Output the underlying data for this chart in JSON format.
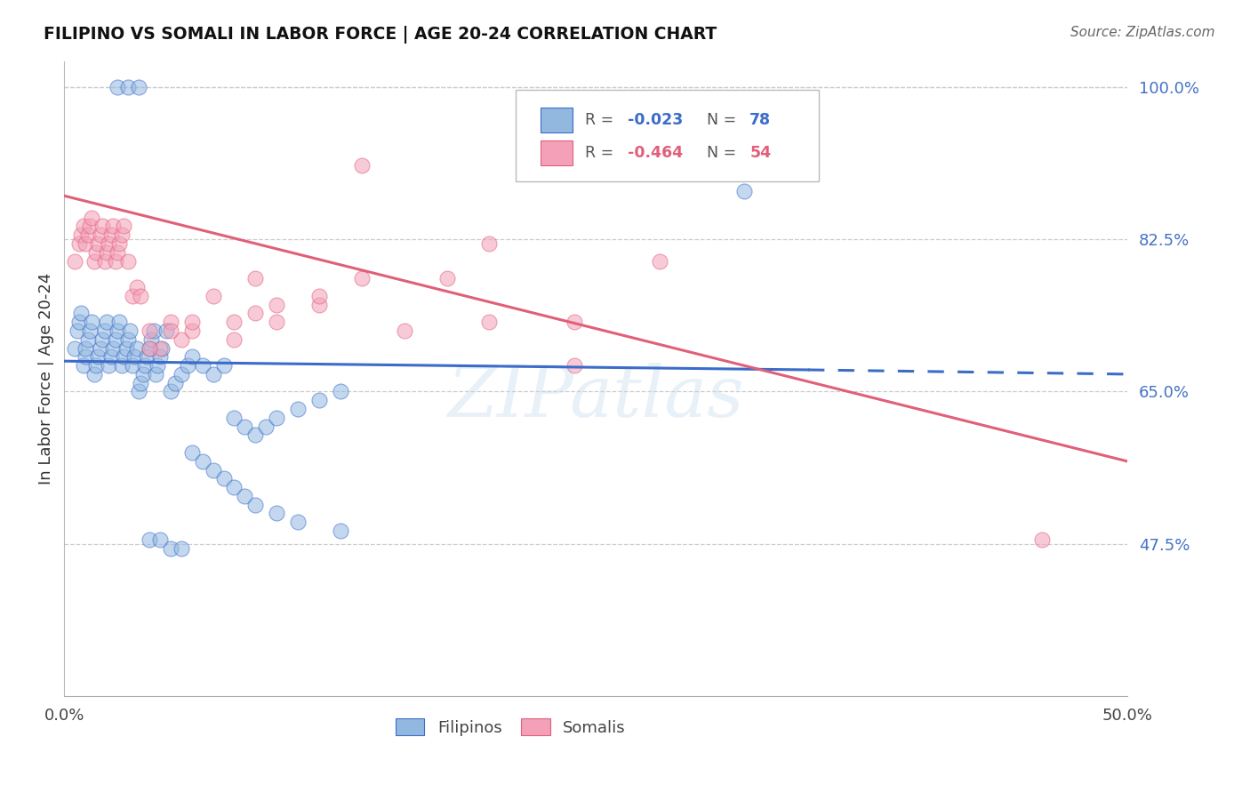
{
  "title": "FILIPINO VS SOMALI IN LABOR FORCE | AGE 20-24 CORRELATION CHART",
  "source": "Source: ZipAtlas.com",
  "ylabel": "In Labor Force | Age 20-24",
  "x_min": 0.0,
  "x_max": 0.5,
  "y_min": 0.3,
  "y_max": 1.03,
  "x_ticks": [
    0.0,
    0.1,
    0.2,
    0.3,
    0.4,
    0.5
  ],
  "x_tick_labels": [
    "0.0%",
    "",
    "",
    "",
    "",
    "50.0%"
  ],
  "y_ticks_right": [
    1.0,
    0.825,
    0.65,
    0.475
  ],
  "y_tick_labels_right": [
    "100.0%",
    "82.5%",
    "65.0%",
    "47.5%"
  ],
  "blue_color": "#92B8E0",
  "pink_color": "#F4A0B8",
  "blue_line_color": "#3B6CC9",
  "pink_line_color": "#E0607A",
  "right_axis_color": "#4472C4",
  "background_color": "#FFFFFF",
  "grid_color": "#CCCCCC",
  "watermark": "ZIPatlas",
  "blue_r": -0.023,
  "blue_n": 78,
  "pink_r": -0.464,
  "pink_n": 54,
  "blue_line_x0": 0.0,
  "blue_line_y0": 0.685,
  "blue_line_x1": 0.35,
  "blue_line_y1": 0.675,
  "blue_line_dash_x1": 0.5,
  "blue_line_dash_y1": 0.67,
  "pink_line_x0": 0.0,
  "pink_line_y0": 0.875,
  "pink_line_x1": 0.5,
  "pink_line_y1": 0.57,
  "blue_x": [
    0.005,
    0.006,
    0.007,
    0.008,
    0.009,
    0.01,
    0.01,
    0.011,
    0.012,
    0.013,
    0.014,
    0.015,
    0.016,
    0.017,
    0.018,
    0.019,
    0.02,
    0.021,
    0.022,
    0.023,
    0.024,
    0.025,
    0.026,
    0.027,
    0.028,
    0.029,
    0.03,
    0.031,
    0.032,
    0.033,
    0.034,
    0.035,
    0.036,
    0.037,
    0.038,
    0.039,
    0.04,
    0.041,
    0.042,
    0.043,
    0.044,
    0.045,
    0.046,
    0.048,
    0.05,
    0.052,
    0.055,
    0.058,
    0.06,
    0.065,
    0.07,
    0.075,
    0.08,
    0.085,
    0.09,
    0.095,
    0.1,
    0.11,
    0.12,
    0.13,
    0.06,
    0.065,
    0.07,
    0.075,
    0.08,
    0.085,
    0.09,
    0.1,
    0.11,
    0.13,
    0.025,
    0.03,
    0.035,
    0.04,
    0.045,
    0.05,
    0.055,
    0.32
  ],
  "blue_y": [
    0.7,
    0.72,
    0.73,
    0.74,
    0.68,
    0.69,
    0.7,
    0.71,
    0.72,
    0.73,
    0.67,
    0.68,
    0.69,
    0.7,
    0.71,
    0.72,
    0.73,
    0.68,
    0.69,
    0.7,
    0.71,
    0.72,
    0.73,
    0.68,
    0.69,
    0.7,
    0.71,
    0.72,
    0.68,
    0.69,
    0.7,
    0.65,
    0.66,
    0.67,
    0.68,
    0.69,
    0.7,
    0.71,
    0.72,
    0.67,
    0.68,
    0.69,
    0.7,
    0.72,
    0.65,
    0.66,
    0.67,
    0.68,
    0.69,
    0.68,
    0.67,
    0.68,
    0.62,
    0.61,
    0.6,
    0.61,
    0.62,
    0.63,
    0.64,
    0.65,
    0.58,
    0.57,
    0.56,
    0.55,
    0.54,
    0.53,
    0.52,
    0.51,
    0.5,
    0.49,
    1.0,
    1.0,
    1.0,
    0.48,
    0.48,
    0.47,
    0.47,
    0.88
  ],
  "pink_x": [
    0.005,
    0.007,
    0.008,
    0.009,
    0.01,
    0.011,
    0.012,
    0.013,
    0.014,
    0.015,
    0.016,
    0.017,
    0.018,
    0.019,
    0.02,
    0.021,
    0.022,
    0.023,
    0.024,
    0.025,
    0.026,
    0.027,
    0.028,
    0.03,
    0.032,
    0.034,
    0.036,
    0.04,
    0.045,
    0.05,
    0.055,
    0.06,
    0.07,
    0.08,
    0.09,
    0.1,
    0.12,
    0.14,
    0.16,
    0.2,
    0.24,
    0.28,
    0.2,
    0.24,
    0.14,
    0.18,
    0.08,
    0.09,
    0.1,
    0.12,
    0.04,
    0.05,
    0.06,
    0.46
  ],
  "pink_y": [
    0.8,
    0.82,
    0.83,
    0.84,
    0.82,
    0.83,
    0.84,
    0.85,
    0.8,
    0.81,
    0.82,
    0.83,
    0.84,
    0.8,
    0.81,
    0.82,
    0.83,
    0.84,
    0.8,
    0.81,
    0.82,
    0.83,
    0.84,
    0.8,
    0.76,
    0.77,
    0.76,
    0.72,
    0.7,
    0.73,
    0.71,
    0.72,
    0.76,
    0.71,
    0.78,
    0.73,
    0.75,
    0.78,
    0.72,
    0.82,
    0.73,
    0.8,
    0.73,
    0.68,
    0.91,
    0.78,
    0.73,
    0.74,
    0.75,
    0.76,
    0.7,
    0.72,
    0.73,
    0.48
  ]
}
